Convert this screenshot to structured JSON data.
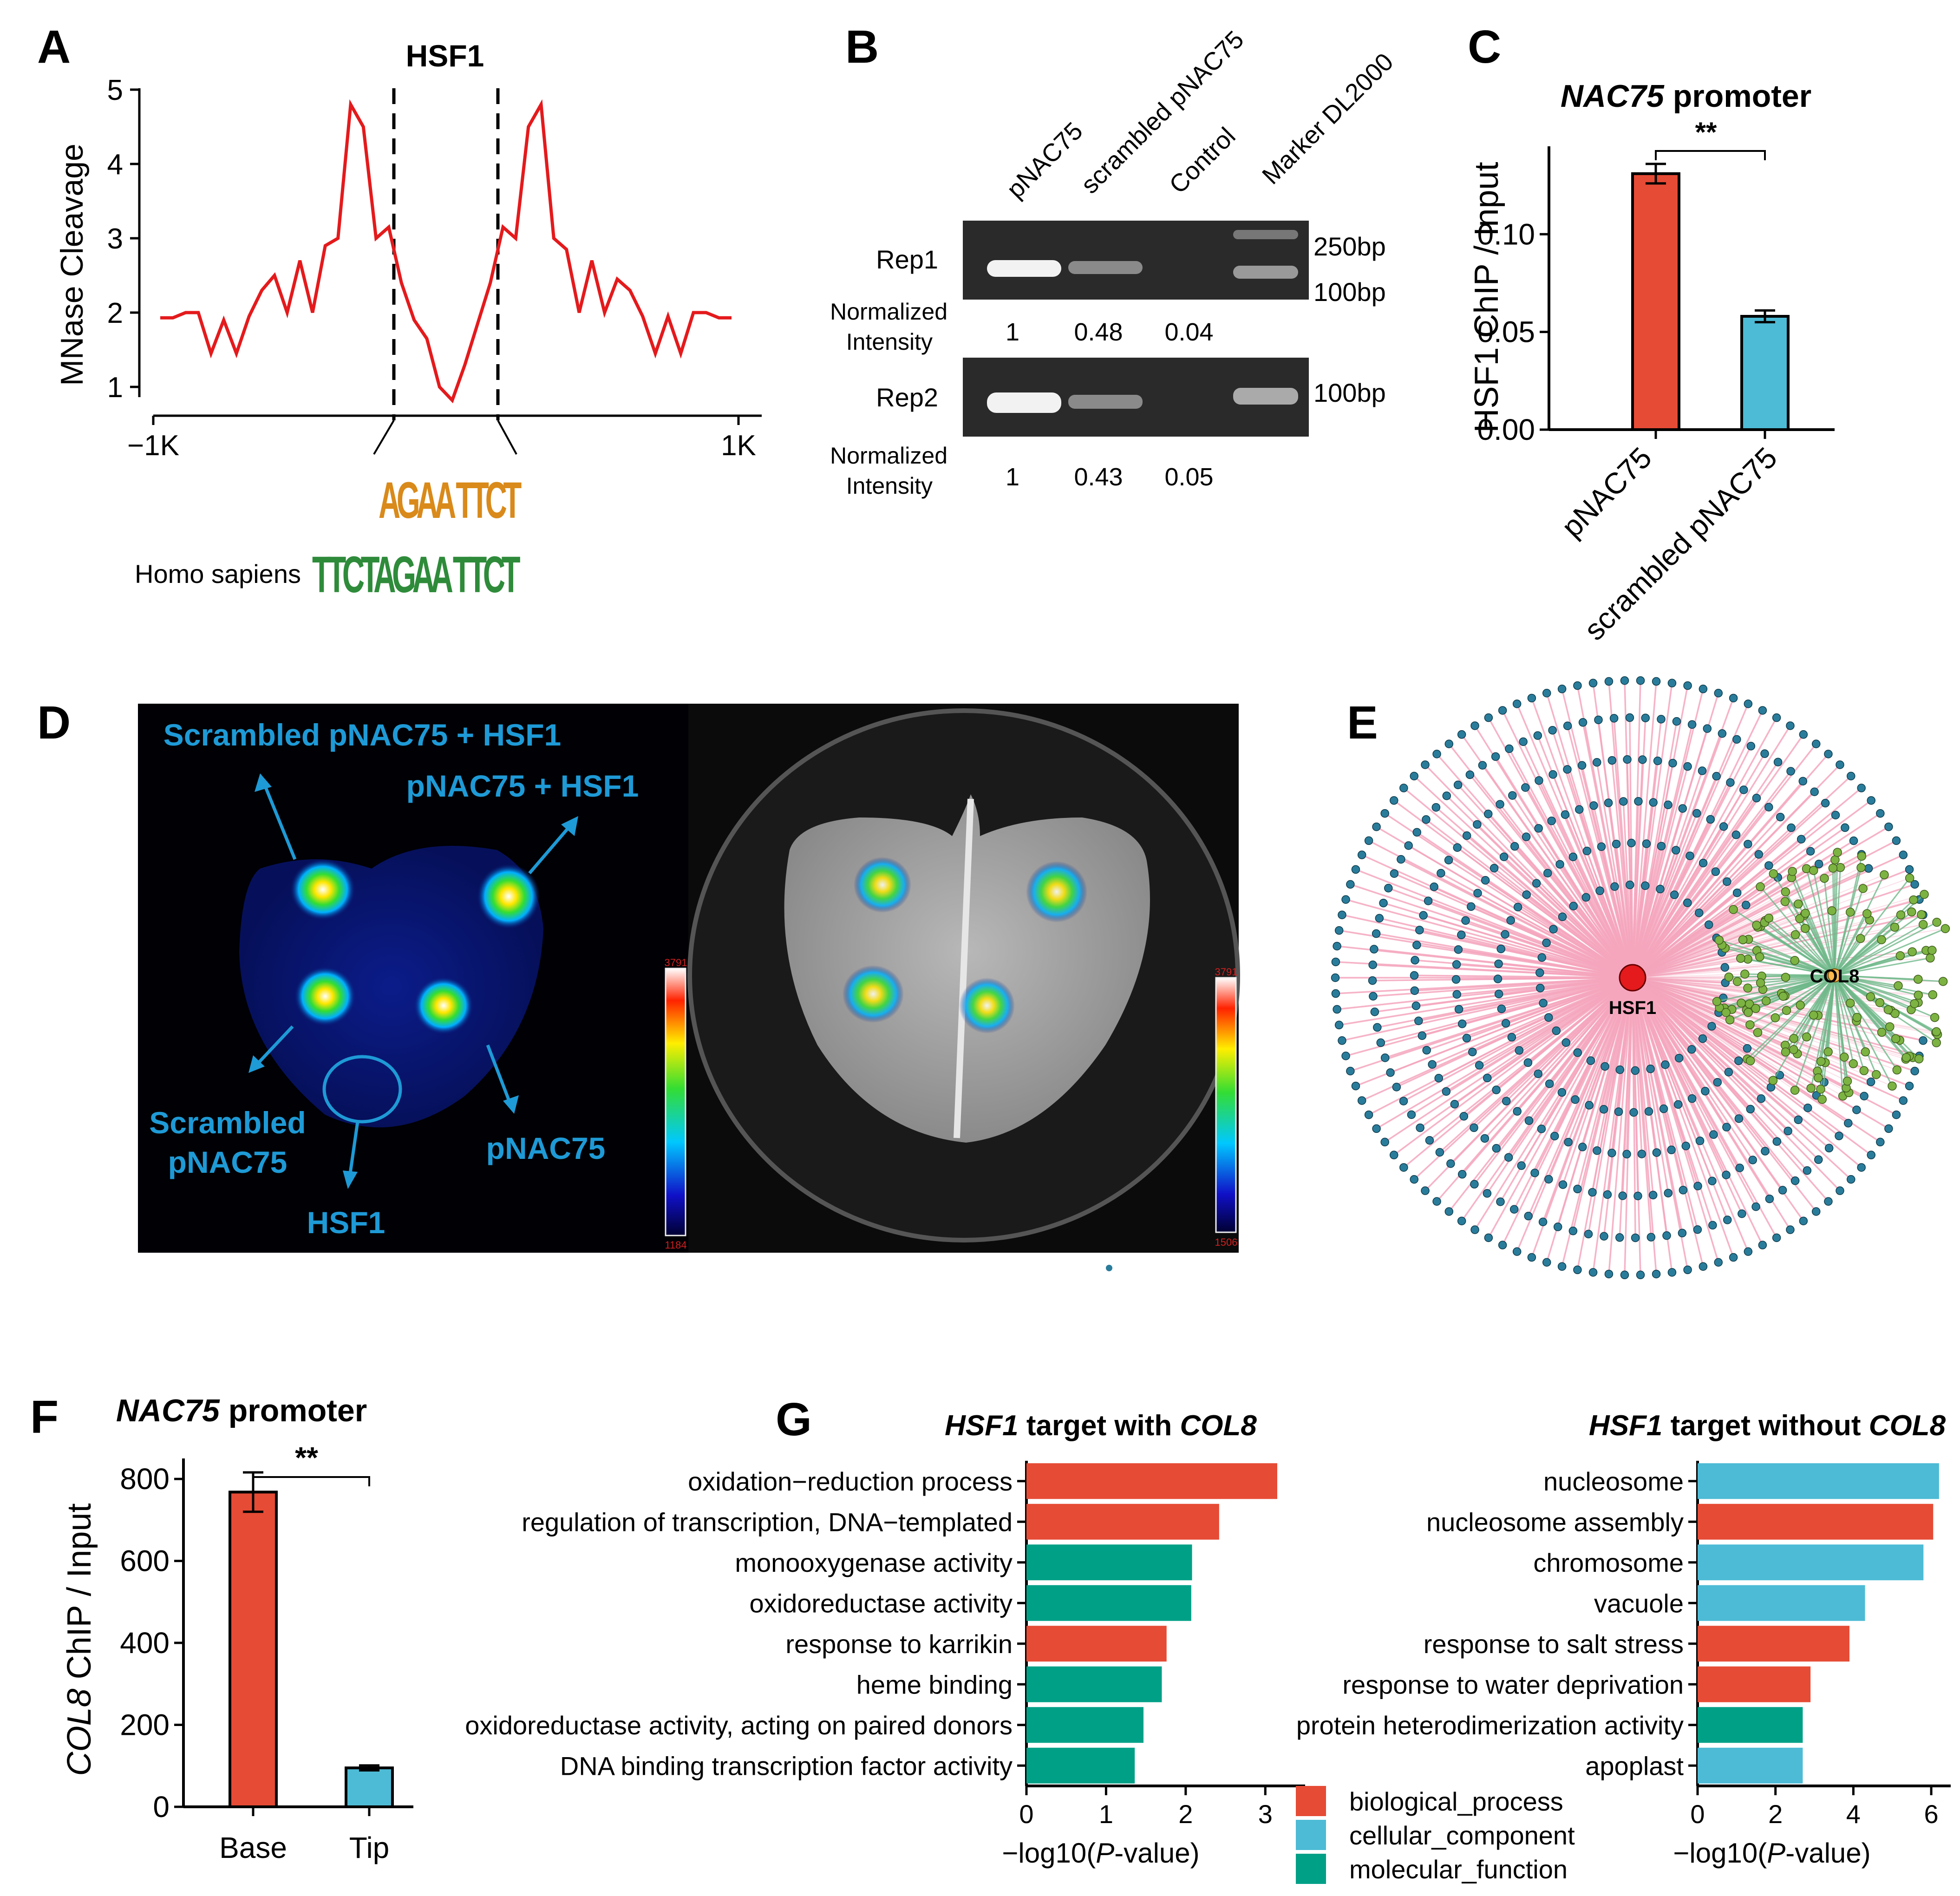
{
  "panels": {
    "A": "A",
    "B": "B",
    "C": "C",
    "D": "D",
    "E": "E",
    "F": "F",
    "G": "G"
  },
  "panelA": {
    "title": "HSF1",
    "ylabel": "MNase Cleavage",
    "yticks": [
      "5",
      "4",
      "3",
      "2",
      "1"
    ],
    "xticks": [
      "−1K",
      "1K"
    ],
    "motif1": "AGAA  TTCT",
    "motif2": "TTCTAGAA  TTCT",
    "motif2_label": "Homo sapiens",
    "line_color": "#e41a1c",
    "profile": [
      1.93,
      1.93,
      2.0,
      2.0,
      1.45,
      1.9,
      1.45,
      1.95,
      2.3,
      2.5,
      2.0,
      2.7,
      2.0,
      2.9,
      3.0,
      4.8,
      4.5,
      3.0,
      3.15,
      2.4,
      1.9,
      1.65,
      1.0,
      0.82,
      1.3,
      1.85,
      2.4,
      3.15,
      3.0,
      4.5,
      4.8,
      3.0,
      2.85,
      2.0,
      2.7,
      2.0,
      2.45,
      2.3,
      1.95,
      1.45,
      1.95,
      1.45,
      2.0,
      2.0,
      1.93,
      1.93
    ]
  },
  "panelB": {
    "lanes": [
      "pNAC75",
      "scrambled pNAC75",
      "Control",
      "Marker DL2000"
    ],
    "rep1": "Rep1",
    "rep2": "Rep2",
    "norm_label_1": "Normalized",
    "norm_label_2": "Intensity",
    "rep1_values": [
      "1",
      "0.48",
      "0.04"
    ],
    "rep2_values": [
      "1",
      "0.43",
      "0.05"
    ],
    "marker_1": "250bp",
    "marker_2": "100bp",
    "marker_3": "100bp"
  },
  "panelC": {
    "title_italic": "NAC75",
    "title_rest": " promoter",
    "ylabel": "HSF1 ChIP / Input",
    "sig": "**",
    "chart_data": {
      "type": "bar",
      "categories": [
        "pNAC75",
        "scrambled pNAC75"
      ],
      "values": [
        0.131,
        0.058
      ],
      "errors": [
        0.005,
        0.003
      ],
      "ylim": [
        0,
        0.145
      ],
      "ytick_values": [
        0,
        0.05,
        0.1
      ],
      "ytick_labels": [
        "0.00",
        "0.05",
        "0.10"
      ],
      "ylabel": "HSF1 ChIP / Input",
      "title": "NAC75 promoter",
      "colors": [
        "#e64b35",
        "#4dbbd5"
      ]
    }
  },
  "panelD": {
    "label_top_left": "Scrambled pNAC75 + HSF1",
    "label_top_right": "pNAC75 + HSF1",
    "label_bottom_left_1": "Scrambled",
    "label_bottom_left_2": "pNAC75",
    "label_bottom_right": "pNAC75",
    "label_bottom_center": "HSF1",
    "scale1_max": "3791",
    "scale1_min": "1184",
    "scale2_max": "3791",
    "scale2_min": "1506",
    "label_color": "#1e9ad6"
  },
  "panelE": {
    "hub1": "HSF1",
    "hub2": "COL8",
    "edge1_color": "#f4a6bd",
    "edge2_color": "#6fb88a",
    "node1_color": "#2a7c9b",
    "node2_color": "#7cb342",
    "hub1_color": "#e41a1c",
    "hub2_color": "#ffb74d"
  },
  "panelF": {
    "title_italic": "NAC75",
    "title_rest": " promoter",
    "ylabel_italic": "COL8",
    "ylabel_rest": " ChIP / Input",
    "sig": "**",
    "chart_data": {
      "type": "bar",
      "categories": [
        "Base",
        "Tip"
      ],
      "values": [
        768,
        95
      ],
      "errors": [
        48,
        6
      ],
      "ylim": [
        0,
        850
      ],
      "ytick_values": [
        0,
        200,
        400,
        600,
        800
      ],
      "ytick_labels": [
        "0",
        "200",
        "400",
        "600",
        "800"
      ],
      "ylabel": "COL8 ChIP / Input",
      "title": "NAC75 promoter",
      "colors": [
        "#e64b35",
        "#4dbbd5"
      ]
    }
  },
  "panelG": {
    "left_title": {
      "a": "HSF1",
      "b": " target with ",
      "c": "COL8"
    },
    "right_title": {
      "a": "HSF1",
      "b": " target without ",
      "c": "COL8"
    },
    "xlabel_pre": "−log10(",
    "xlabel_it": "P",
    "xlabel_post": "-value)",
    "legend": [
      {
        "label": "biological_process",
        "color": "#e64b35"
      },
      {
        "label": "cellular_component",
        "color": "#4dbbd5"
      },
      {
        "label": "molecular_function",
        "color": "#00a087"
      }
    ],
    "chart_data": [
      {
        "type": "bar",
        "orientation": "horizontal",
        "title": "HSF1 target with COL8",
        "xlabel": "−log10(P-value)",
        "xlim": [
          0,
          3.5
        ],
        "xticks": [
          0,
          1,
          2,
          3
        ],
        "categories": [
          "oxidation−reduction process",
          "regulation of transcription, DNA−templated",
          "monooxygenase activity",
          "oxidoreductase activity",
          "response to karrikin",
          "heme binding",
          "oxidoreductase activity, acting on paired donors",
          "DNA binding transcription factor activity"
        ],
        "values": [
          3.15,
          2.42,
          2.08,
          2.07,
          1.76,
          1.7,
          1.47,
          1.36
        ],
        "groups": [
          "biological_process",
          "biological_process",
          "molecular_function",
          "molecular_function",
          "biological_process",
          "molecular_function",
          "molecular_function",
          "molecular_function"
        ]
      },
      {
        "type": "bar",
        "orientation": "horizontal",
        "title": "HSF1 target without COL8",
        "xlabel": "−log10(P-value)",
        "xlim": [
          0,
          6.5
        ],
        "xticks": [
          0,
          2,
          4,
          6
        ],
        "categories": [
          "nucleosome",
          "nucleosome assembly",
          "chromosome",
          "vacuole",
          "response to salt stress",
          "response to water deprivation",
          "protein heterodimerization activity",
          "apoplast"
        ],
        "values": [
          6.2,
          6.05,
          5.8,
          4.3,
          3.9,
          2.9,
          2.7,
          2.7
        ],
        "groups": [
          "cellular_component",
          "biological_process",
          "cellular_component",
          "cellular_component",
          "biological_process",
          "biological_process",
          "molecular_function",
          "cellular_component"
        ]
      }
    ]
  }
}
